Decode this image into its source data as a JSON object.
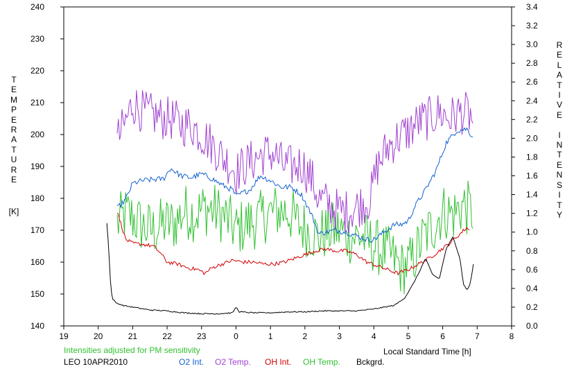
{
  "chart_data": {
    "type": "line",
    "xlabel": "Local Standard Time [h]",
    "xlim": [
      19,
      32
    ],
    "x_ticks": [
      "19",
      "20",
      "21",
      "22",
      "23",
      "0",
      "1",
      "2",
      "3",
      "4",
      "5",
      "6",
      "7",
      "8"
    ],
    "ylabel_left": "TEMPERATURE",
    "ylabel_left_unit": "[K]",
    "ylim_left": [
      140,
      240
    ],
    "y_ticks_left": [
      "140",
      "150",
      "160",
      "170",
      "180",
      "190",
      "200",
      "210",
      "220",
      "230",
      "240"
    ],
    "ylabel_right": "RELATIVE INTENSITY",
    "ylim_right": [
      0.0,
      3.4
    ],
    "y_ticks_right": [
      "0.0",
      "0.2",
      "0.4",
      "0.6",
      "0.8",
      "1.0",
      "1.2",
      "1.4",
      "1.6",
      "1.8",
      "2.0",
      "2.2",
      "2.4",
      "2.6",
      "2.8",
      "3.0",
      "3.2",
      "3.4"
    ],
    "grid": false,
    "note": "Intensities adjusted for PM sensitivity",
    "station": "LEO 10APR2010",
    "legend_placement": "bottom",
    "series": [
      {
        "name": "O2 Int.",
        "axis": "right",
        "color": "#1060d0",
        "noise": 0.03,
        "x": [
          20.55,
          20.8,
          21.0,
          21.3,
          21.6,
          21.9,
          22.1,
          22.4,
          22.7,
          23.0,
          23.3,
          23.6,
          23.9,
          24.0,
          24.2,
          24.4,
          24.7,
          25.0,
          25.3,
          25.6,
          25.9,
          26.2,
          26.4,
          26.6,
          26.9,
          27.2,
          27.5,
          27.8,
          28.0,
          28.3,
          28.6,
          28.8,
          29.0,
          29.2,
          29.5,
          29.8,
          30.1,
          30.4,
          30.7,
          30.9
        ],
        "y": [
          1.25,
          1.35,
          1.52,
          1.55,
          1.56,
          1.57,
          1.68,
          1.6,
          1.58,
          1.62,
          1.57,
          1.5,
          1.45,
          1.38,
          1.42,
          1.45,
          1.6,
          1.55,
          1.48,
          1.48,
          1.4,
          1.18,
          0.98,
          1.0,
          1.02,
          1.0,
          0.96,
          0.92,
          0.92,
          1.0,
          1.08,
          1.08,
          1.12,
          1.28,
          1.45,
          1.65,
          1.95,
          2.08,
          2.1,
          2.0
        ]
      },
      {
        "name": "O2 Temp.",
        "axis": "left",
        "color": "#a040d0",
        "noise": 7,
        "x": [
          20.55,
          20.8,
          21.0,
          21.3,
          21.6,
          21.9,
          22.1,
          22.4,
          22.7,
          23.0,
          23.3,
          23.6,
          23.9,
          24.0,
          24.2,
          24.5,
          24.8,
          25.1,
          25.4,
          25.7,
          25.9,
          26.2,
          26.4,
          26.7,
          27.0,
          27.3,
          27.6,
          27.9,
          28.1,
          28.4,
          28.7,
          29.0,
          29.3,
          29.6,
          29.9,
          30.2,
          30.5,
          30.8,
          30.9
        ],
        "y": [
          198,
          204,
          210,
          207,
          206,
          205,
          205,
          203,
          203,
          200,
          197,
          193,
          190,
          188,
          190,
          192,
          194,
          194,
          190,
          190,
          191,
          186,
          180,
          178,
          176,
          176,
          178,
          180,
          190,
          196,
          199,
          201,
          204,
          205,
          207,
          205,
          207,
          206,
          203
        ]
      },
      {
        "name": "OH Int.",
        "axis": "right",
        "color": "#d00000",
        "noise": 0.02,
        "x": [
          20.55,
          20.8,
          21.0,
          21.3,
          21.6,
          21.8,
          22.0,
          22.3,
          22.6,
          22.9,
          23.1,
          23.3,
          23.6,
          23.9,
          24.2,
          24.5,
          24.8,
          25.1,
          25.4,
          25.7,
          26.0,
          26.3,
          26.6,
          26.9,
          27.2,
          27.5,
          27.8,
          28.1,
          28.4,
          28.7,
          29.0,
          29.3,
          29.6,
          29.9,
          30.2,
          30.5,
          30.7,
          30.8
        ],
        "y": [
          1.22,
          0.92,
          0.88,
          0.87,
          0.85,
          0.78,
          0.68,
          0.66,
          0.62,
          0.6,
          0.56,
          0.62,
          0.66,
          0.7,
          0.68,
          0.68,
          0.66,
          0.66,
          0.68,
          0.72,
          0.76,
          0.8,
          0.82,
          0.8,
          0.8,
          0.76,
          0.68,
          0.64,
          0.6,
          0.56,
          0.6,
          0.66,
          0.72,
          0.8,
          0.88,
          0.98,
          1.05,
          1.0
        ]
      },
      {
        "name": "OH Temp.",
        "axis": "left",
        "color": "#30c030",
        "noise": 9,
        "x": [
          20.55,
          20.8,
          21.0,
          21.3,
          21.6,
          21.9,
          22.2,
          22.5,
          22.8,
          23.1,
          23.4,
          23.7,
          24.0,
          24.3,
          24.6,
          24.9,
          25.2,
          25.5,
          25.8,
          26.1,
          26.4,
          26.7,
          27.0,
          27.3,
          27.6,
          27.9,
          28.2,
          28.5,
          28.8,
          29.1,
          29.4,
          29.7,
          30.0,
          30.3,
          30.6,
          30.8,
          30.9
        ],
        "y": [
          172,
          175,
          174,
          171,
          170,
          172,
          172,
          176,
          175,
          177,
          176,
          174,
          170,
          172,
          173,
          175,
          176,
          176,
          172,
          170,
          168,
          170,
          170,
          168,
          168,
          166,
          164,
          162,
          158,
          160,
          167,
          171,
          176,
          175,
          178,
          176,
          176
        ]
      },
      {
        "name": "Bckgrd.",
        "axis": "right",
        "color": "#000000",
        "noise": 0.006,
        "x": [
          20.25,
          20.3,
          20.35,
          20.4,
          20.5,
          20.7,
          21.0,
          21.5,
          22.0,
          22.5,
          23.0,
          23.5,
          23.9,
          24.0,
          24.1,
          24.5,
          25.0,
          25.5,
          26.0,
          26.5,
          27.0,
          27.5,
          28.0,
          28.3,
          28.6,
          28.9,
          29.1,
          29.3,
          29.5,
          29.7,
          29.9,
          30.1,
          30.3,
          30.5,
          30.6,
          30.7,
          30.8,
          30.9
        ],
        "y": [
          1.1,
          0.85,
          0.5,
          0.3,
          0.25,
          0.22,
          0.2,
          0.17,
          0.16,
          0.14,
          0.13,
          0.13,
          0.14,
          0.2,
          0.15,
          0.14,
          0.14,
          0.15,
          0.15,
          0.16,
          0.16,
          0.16,
          0.18,
          0.2,
          0.22,
          0.3,
          0.42,
          0.56,
          0.72,
          0.55,
          0.5,
          0.82,
          0.95,
          0.72,
          0.45,
          0.38,
          0.45,
          0.68
        ]
      }
    ]
  }
}
